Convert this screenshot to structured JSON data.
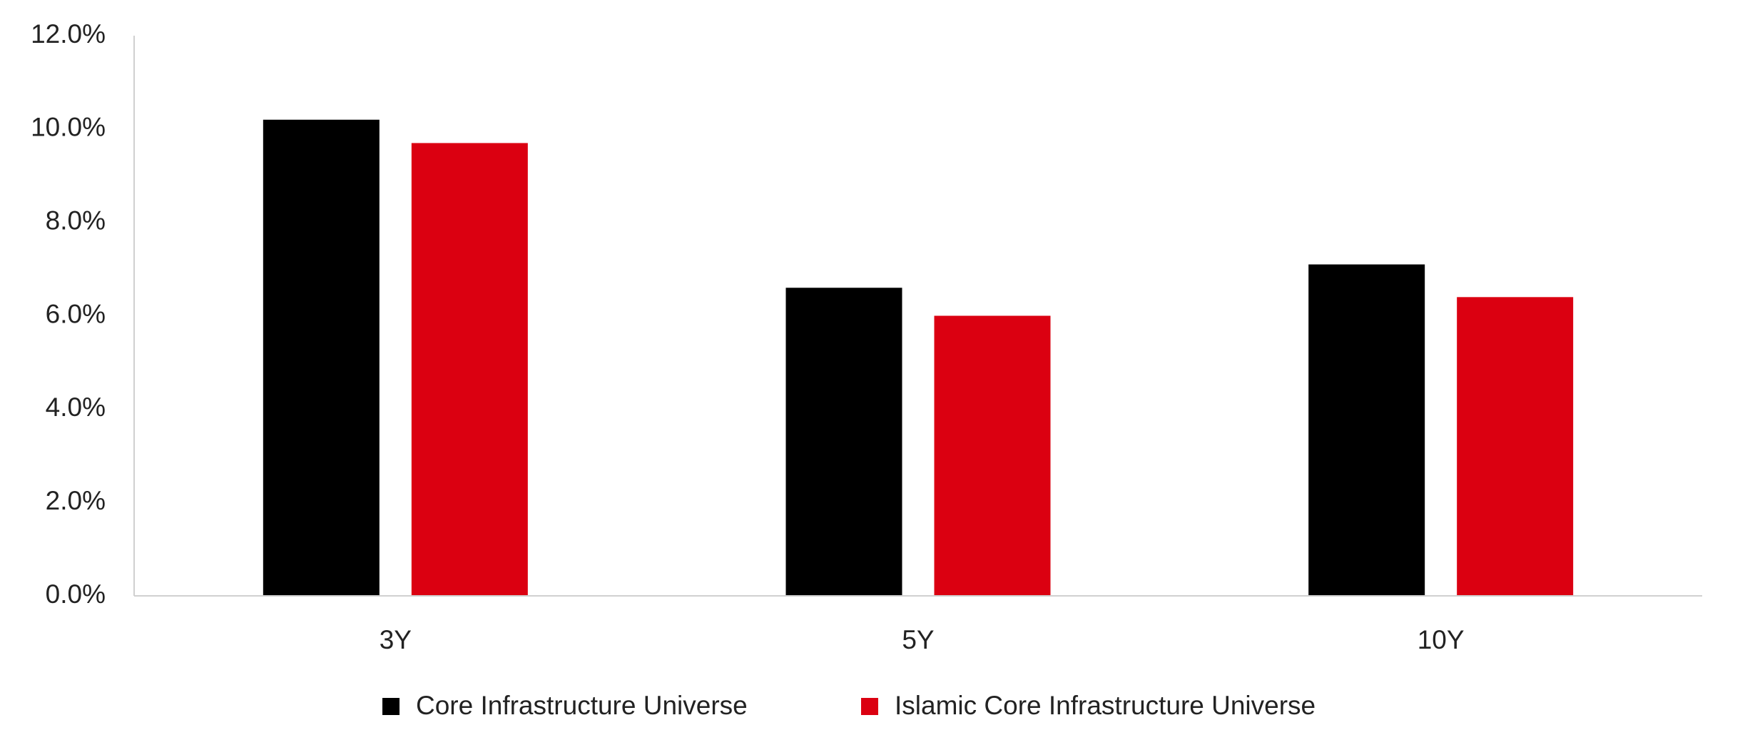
{
  "chart_data": {
    "type": "bar",
    "categories": [
      "3Y",
      "5Y",
      "10Y"
    ],
    "series": [
      {
        "name": "Core Infrastructure Universe",
        "color": "#000000",
        "values": [
          10.2,
          6.6,
          7.1
        ]
      },
      {
        "name": "Islamic Core Infrastructure Universe",
        "color": "#db0011",
        "values": [
          9.7,
          6.0,
          6.4
        ]
      }
    ],
    "ylim": [
      0,
      12
    ],
    "yticks": [
      {
        "value": 0,
        "label": "0.0%"
      },
      {
        "value": 2,
        "label": "2.0%"
      },
      {
        "value": 4,
        "label": "4.0%"
      },
      {
        "value": 6,
        "label": "6.0%"
      },
      {
        "value": 8,
        "label": "8.0%"
      },
      {
        "value": 10,
        "label": "10.0%"
      },
      {
        "value": 12,
        "label": "12.0%"
      }
    ],
    "grid": false,
    "legend": "bottom"
  }
}
